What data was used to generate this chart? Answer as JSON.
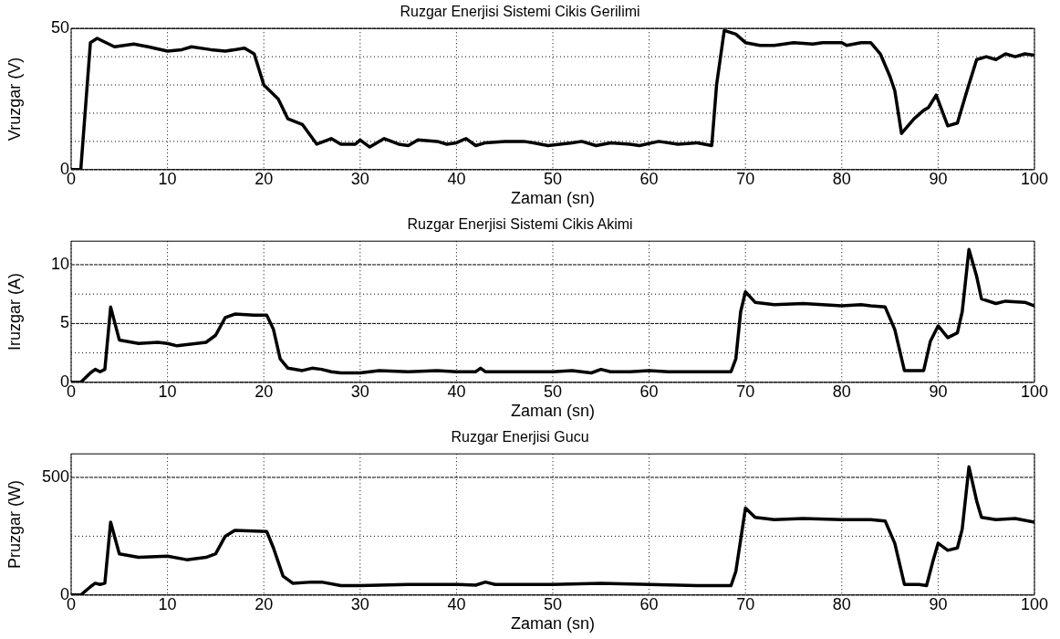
{
  "chart_data": [
    {
      "type": "line",
      "title": "Ruzgar Enerjisi Sistemi Cikis Gerilimi",
      "xlabel": "Zaman (sn)",
      "ylabel": "Vruzgar (V)",
      "xlim": [
        0,
        100
      ],
      "xticks": [
        0,
        10,
        20,
        30,
        40,
        50,
        60,
        70,
        80,
        90,
        100
      ],
      "ylim": [
        0,
        50
      ],
      "yticks": [
        0,
        {
          "value": 10,
          "label": null
        },
        {
          "value": 20,
          "label": null
        },
        {
          "value": 30,
          "label": null
        },
        {
          "value": 40,
          "label": null
        },
        50
      ],
      "grid": true,
      "legend": false,
      "marker": "none",
      "line_style": "solid",
      "series": [
        {
          "color": "#000000",
          "x": [
            0,
            1,
            2,
            2.7,
            4.5,
            6.5,
            8,
            10,
            11.5,
            12.5,
            14.5,
            16,
            18,
            19,
            20,
            21.5,
            22.5,
            24,
            25.5,
            27,
            28,
            29.5,
            30,
            31,
            32.5,
            34,
            35,
            36,
            38,
            39,
            40,
            41,
            42,
            43,
            45,
            47,
            48,
            49.5,
            52,
            53,
            54.5,
            56,
            58,
            59,
            61,
            63,
            65,
            66.5,
            67,
            67.8,
            69,
            70,
            71.5,
            73,
            75,
            77,
            78,
            80,
            80.5,
            82,
            83,
            84,
            85,
            85.5,
            86.2,
            87.5,
            88.5,
            89,
            89.8,
            90.5,
            91,
            92,
            93,
            94,
            95,
            96,
            97,
            98,
            99,
            100
          ],
          "values": [
            0,
            0,
            45,
            46.5,
            43.5,
            44.5,
            43.5,
            42,
            42.5,
            43.5,
            42.5,
            42,
            43,
            41,
            30,
            25,
            18,
            16,
            9,
            11,
            9,
            9,
            10.5,
            8,
            11,
            9,
            8.5,
            10.5,
            10,
            9,
            9.5,
            11,
            8.5,
            9.5,
            10,
            10,
            9.5,
            8.5,
            9.5,
            10,
            8.5,
            9.5,
            9,
            8.5,
            10,
            9,
            9.5,
            8.5,
            30,
            49.3,
            48,
            45,
            44,
            44,
            45,
            44.5,
            45,
            45,
            44,
            45,
            45,
            41,
            33,
            28,
            12.8,
            18,
            21,
            22,
            26.4,
            20,
            15.5,
            16.5,
            28,
            39,
            40,
            39,
            41,
            40,
            41,
            40.5
          ]
        }
      ]
    },
    {
      "type": "line",
      "title": "Ruzgar Enerjisi Sistemi Cikis Akimi",
      "xlabel": "Zaman (sn)",
      "ylabel": "Iruzgar (A)",
      "xlim": [
        0,
        100
      ],
      "xticks": [
        0,
        10,
        20,
        30,
        40,
        50,
        60,
        70,
        80,
        90,
        100
      ],
      "ylim": [
        0,
        12
      ],
      "yticks": [
        0,
        {
          "value": 2.5,
          "label": null
        },
        5,
        {
          "value": 7.5,
          "label": null
        },
        10
      ],
      "grid": true,
      "legend": false,
      "marker": "none",
      "line_style": "solid",
      "series": [
        {
          "color": "#000000",
          "x": [
            0,
            1,
            2,
            2.5,
            3,
            3.5,
            4.1,
            5,
            7,
            9,
            10,
            11,
            12,
            14,
            15,
            16,
            17,
            19,
            20.3,
            21,
            21.7,
            22.5,
            24,
            25,
            26,
            27,
            28,
            30,
            32,
            35,
            38,
            40,
            42,
            42.5,
            43,
            46,
            50,
            52,
            54,
            55,
            56,
            58,
            60,
            62,
            65,
            68.5,
            69,
            69.5,
            70,
            71,
            73,
            76,
            78,
            80,
            82,
            83,
            84.5,
            85.5,
            86.5,
            88,
            88.5,
            89.2,
            90,
            91,
            92,
            92.5,
            93.2,
            94,
            94.5,
            96,
            97,
            99,
            100
          ],
          "values": [
            0,
            0,
            0.8,
            1.1,
            0.9,
            1.1,
            6.4,
            3.6,
            3.3,
            3.4,
            3.3,
            3.1,
            3.2,
            3.4,
            4,
            5.5,
            5.8,
            5.7,
            5.7,
            4.5,
            2,
            1.2,
            1,
            1.2,
            1.1,
            0.9,
            0.8,
            0.8,
            1,
            0.9,
            1,
            0.9,
            0.9,
            1.2,
            0.9,
            0.9,
            0.9,
            1,
            0.8,
            1.1,
            0.9,
            0.9,
            1,
            0.9,
            0.9,
            0.9,
            2,
            6,
            7.7,
            6.8,
            6.6,
            6.7,
            6.6,
            6.5,
            6.6,
            6.5,
            6.4,
            4.5,
            1,
            1,
            1,
            3.5,
            4.8,
            3.8,
            4.2,
            6,
            11.3,
            9,
            7.1,
            6.7,
            6.9,
            6.8,
            6.5
          ]
        }
      ]
    },
    {
      "type": "line",
      "title": "Ruzgar Enerjisi Gucu",
      "xlabel": "Zaman (sn)",
      "ylabel": "Pruzgar (W)",
      "xlim": [
        0,
        100
      ],
      "xticks": [
        0,
        10,
        20,
        30,
        40,
        50,
        60,
        70,
        80,
        90,
        100
      ],
      "ylim": [
        0,
        600
      ],
      "yticks": [
        0,
        {
          "value": 250,
          "label": null
        },
        500
      ],
      "grid": true,
      "legend": false,
      "marker": "none",
      "line_style": "solid",
      "series": [
        {
          "color": "#000000",
          "x": [
            0,
            1,
            2,
            2.5,
            3,
            3.5,
            4.1,
            5,
            7,
            10,
            12,
            14,
            15,
            16,
            17,
            19,
            20.3,
            21,
            22,
            23,
            25,
            26,
            28,
            30,
            35,
            40,
            42,
            43,
            44,
            50,
            55,
            60,
            65,
            68.5,
            69,
            70,
            71,
            73,
            76,
            80,
            83,
            84.5,
            85.5,
            86.5,
            88,
            88.8,
            89.5,
            90,
            91,
            92,
            92.5,
            93.2,
            94,
            94.5,
            96,
            98,
            100
          ],
          "values": [
            0,
            0,
            35,
            50,
            45,
            50,
            310,
            175,
            160,
            165,
            150,
            160,
            175,
            250,
            275,
            272,
            270,
            200,
            80,
            50,
            55,
            55,
            40,
            40,
            45,
            45,
            42,
            55,
            45,
            45,
            50,
            45,
            40,
            40,
            100,
            370,
            330,
            320,
            325,
            320,
            320,
            315,
            220,
            45,
            45,
            40,
            150,
            220,
            190,
            200,
            280,
            545,
            400,
            330,
            320,
            325,
            310
          ]
        }
      ]
    }
  ]
}
